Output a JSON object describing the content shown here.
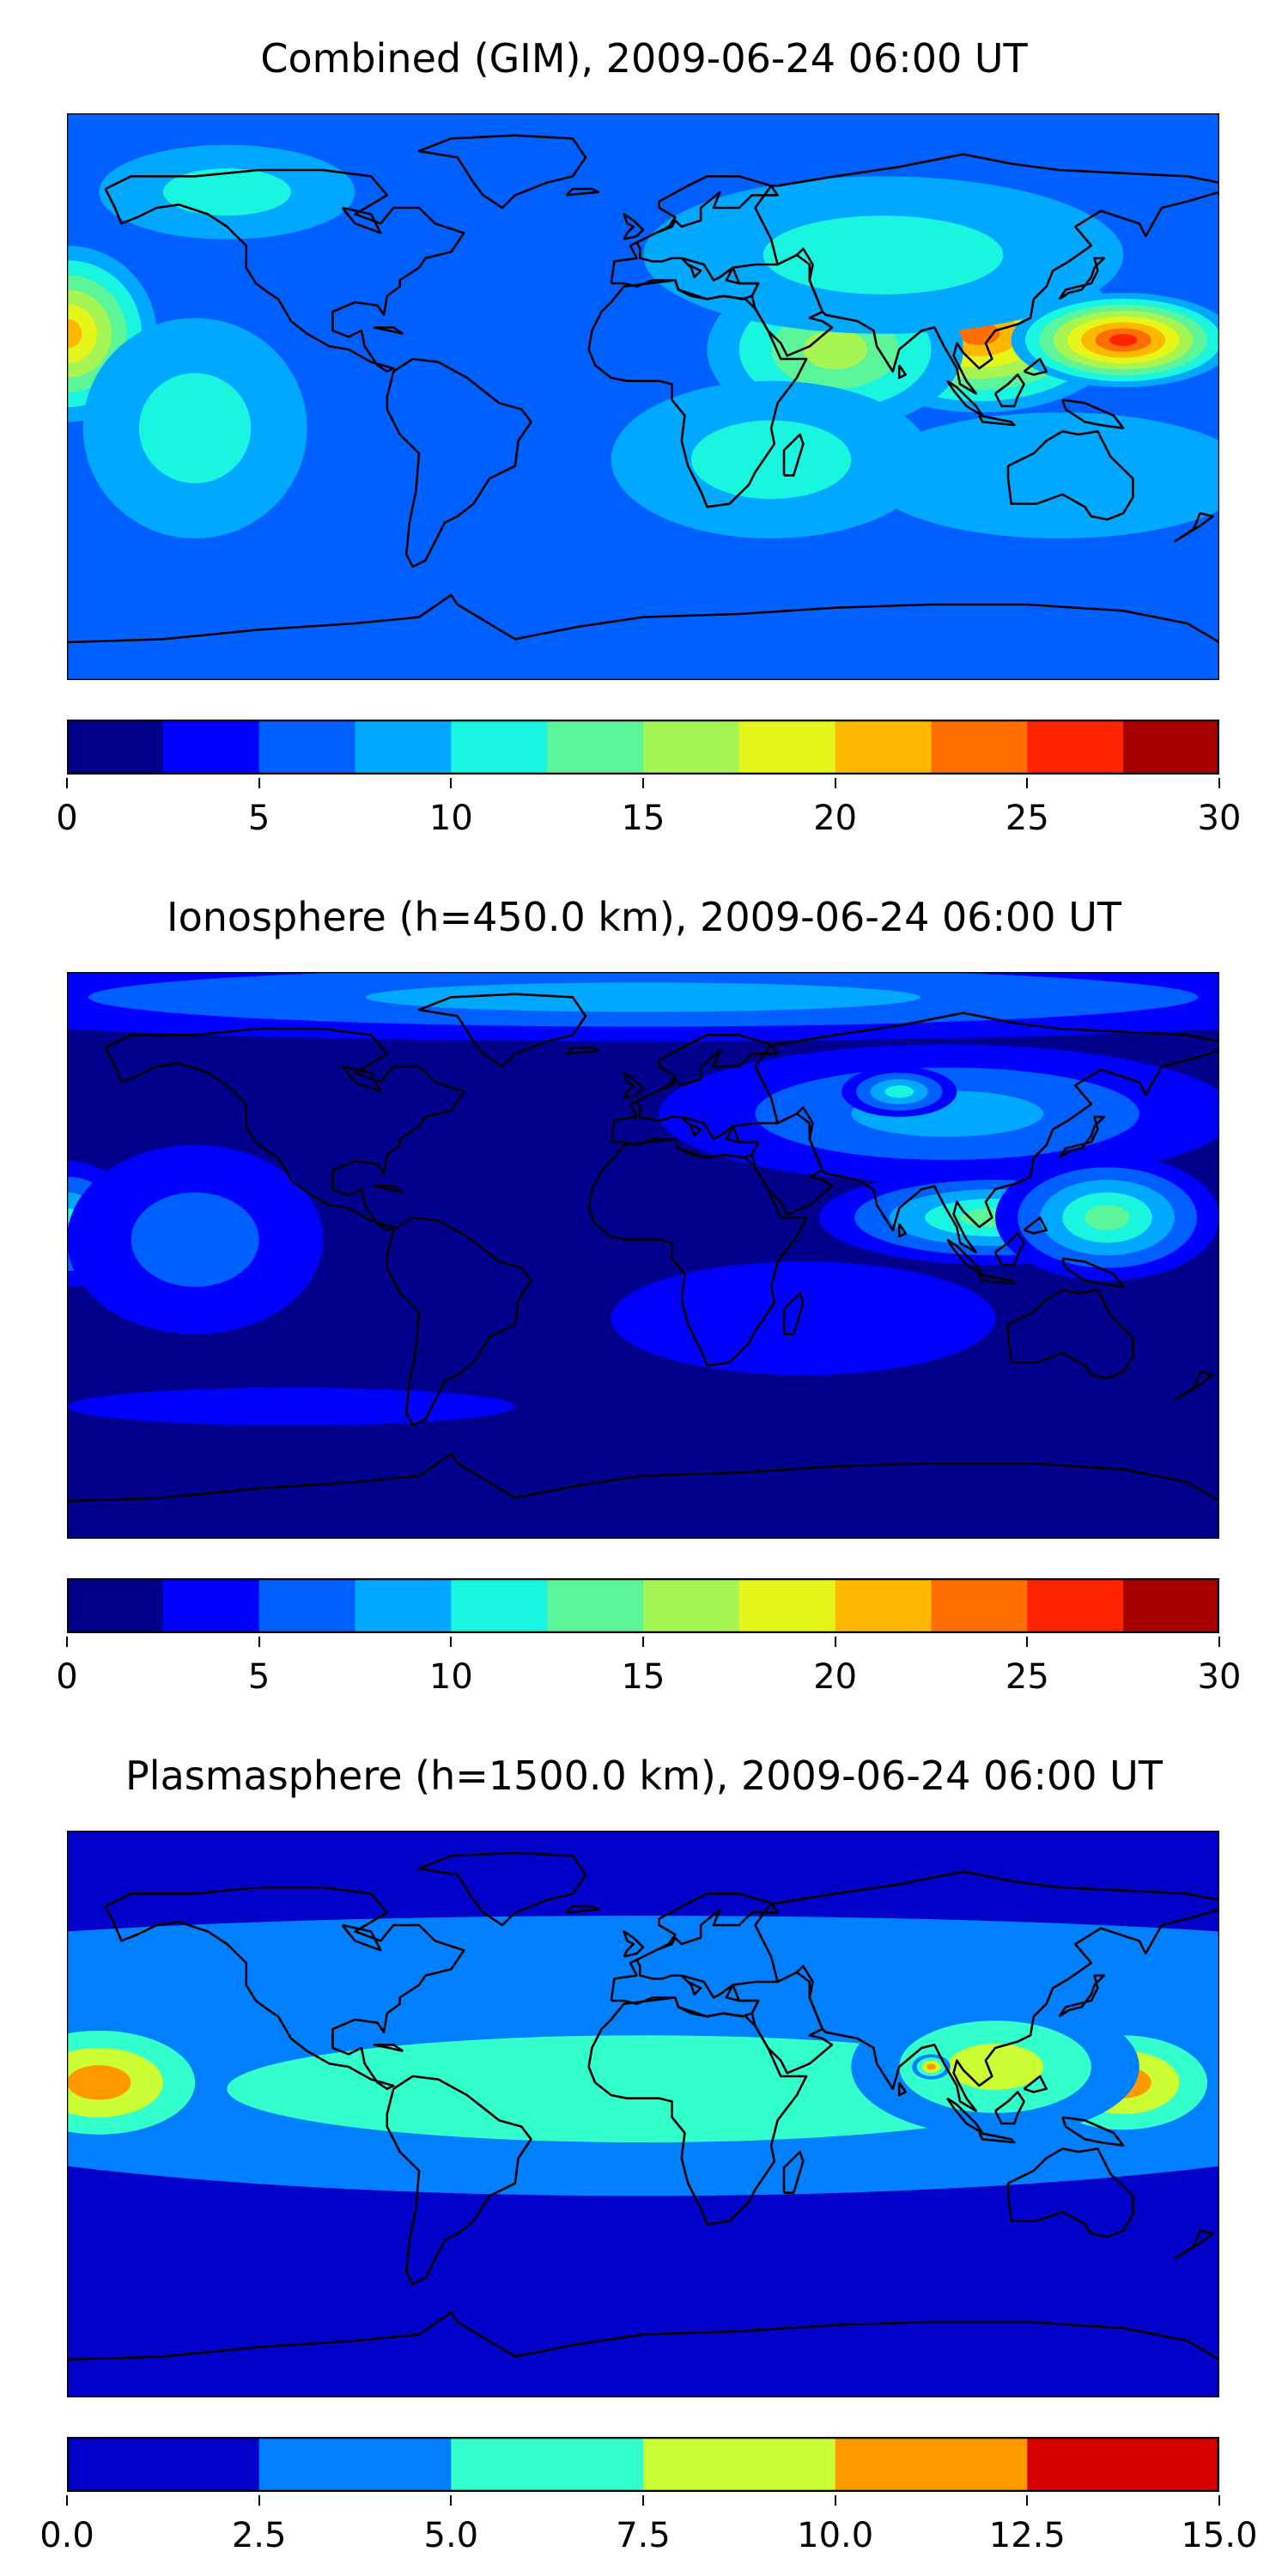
{
  "chart_data": [
    {
      "type": "heatmap",
      "title": "Combined (GIM), 2009-06-24 06:00 UT",
      "colorbar": {
        "levels": [
          0,
          2.5,
          5,
          7.5,
          10,
          12.5,
          15,
          17.5,
          20,
          22.5,
          25,
          27.5,
          30
        ],
        "colors": [
          "#00008c",
          "#0000ff",
          "#0060ff",
          "#00a8ff",
          "#1af5e0",
          "#5cf59a",
          "#a6f553",
          "#e6f51a",
          "#ffb800",
          "#ff6e00",
          "#ff2400",
          "#a80000"
        ],
        "tick_labels": [
          "0",
          "5",
          "10",
          "15",
          "20",
          "25",
          "30"
        ],
        "tick_values": [
          0,
          5,
          10,
          15,
          20,
          25,
          30
        ]
      },
      "background_level": 2,
      "features": [
        {
          "lon": 105,
          "lat": 20,
          "value": 23,
          "rlon": 45,
          "rlat": 25
        },
        {
          "lon": 150,
          "lat": 18,
          "value": 27,
          "rlon": 35,
          "rlat": 15
        },
        {
          "lon": 60,
          "lat": 15,
          "value": 17,
          "rlon": 40,
          "rlat": 25
        },
        {
          "lon": -180,
          "lat": 20,
          "value": 22,
          "rlon": 28,
          "rlat": 28
        },
        {
          "lon": 75,
          "lat": 45,
          "value": 12,
          "rlon": 75,
          "rlat": 25
        },
        {
          "lon": 40,
          "lat": -20,
          "value": 10,
          "rlon": 50,
          "rlat": 25
        },
        {
          "lon": -140,
          "lat": -10,
          "value": 10,
          "rlon": 35,
          "rlat": 35
        },
        {
          "lon": -130,
          "lat": 65,
          "value": 10,
          "rlon": 40,
          "rlat": 15
        },
        {
          "lon": 130,
          "lat": -25,
          "value": 9,
          "rlon": 60,
          "rlat": 20
        }
      ]
    },
    {
      "type": "heatmap",
      "title": "Ionosphere  (h=450.0 km), 2009-06-24 06:00 UT",
      "colorbar": {
        "levels": [
          0,
          2.5,
          5,
          7.5,
          10,
          12.5,
          15,
          17.5,
          20,
          22.5,
          25,
          27.5,
          30
        ],
        "colors": [
          "#00008c",
          "#0000ff",
          "#0060ff",
          "#00a8ff",
          "#1af5e0",
          "#5cf59a",
          "#a6f553",
          "#e6f51a",
          "#ffb800",
          "#ff6e00",
          "#ff2400",
          "#a80000"
        ],
        "tick_labels": [
          "0",
          "5",
          "10",
          "15",
          "20",
          "25",
          "30"
        ],
        "tick_values": [
          0,
          5,
          10,
          15,
          20,
          25,
          30
        ]
      },
      "background_level": 0,
      "features": [
        {
          "lon": 0,
          "lat": 82,
          "value": 9,
          "rlon": 260,
          "rlat": 14
        },
        {
          "lon": 95,
          "lat": 45,
          "value": 9,
          "rlon": 90,
          "rlat": 22
        },
        {
          "lon": 110,
          "lat": 12,
          "value": 14,
          "rlon": 55,
          "rlat": 15
        },
        {
          "lon": 145,
          "lat": 12,
          "value": 13,
          "rlon": 35,
          "rlat": 20
        },
        {
          "lon": 80,
          "lat": 52,
          "value": 11,
          "rlon": 18,
          "rlat": 8
        },
        {
          "lon": -180,
          "lat": 10,
          "value": 10,
          "rlon": 22,
          "rlat": 20
        },
        {
          "lon": 50,
          "lat": -20,
          "value": 4,
          "rlon": 60,
          "rlat": 18
        },
        {
          "lon": -140,
          "lat": 5,
          "value": 5,
          "rlon": 40,
          "rlat": 30
        },
        {
          "lon": -110,
          "lat": -48,
          "value": 3,
          "rlon": 70,
          "rlat": 6
        }
      ]
    },
    {
      "type": "heatmap",
      "title": "Plasmasphere (h=1500.0 km), 2009-06-24 06:00 UT",
      "colorbar": {
        "levels": [
          0,
          2.5,
          5,
          7.5,
          10,
          12.5,
          15
        ],
        "colors": [
          "#0000c8",
          "#0080ff",
          "#33ffcc",
          "#ccff33",
          "#ff9900",
          "#d80000"
        ],
        "tick_labels": [
          "0.0",
          "2.5",
          "5.0",
          "7.5",
          "10.0",
          "12.5",
          "15.0"
        ],
        "tick_values": [
          0,
          2.5,
          5,
          7.5,
          10,
          12.5,
          15
        ]
      },
      "background_level": 0,
      "features": [
        {
          "lon": 0,
          "lat": 8,
          "value": 6,
          "rlon": 260,
          "rlat": 34
        },
        {
          "lon": 0,
          "lat": 45,
          "value": 3,
          "rlon": 260,
          "rlat": 18
        },
        {
          "lon": -170,
          "lat": 10,
          "value": 11,
          "rlon": 40,
          "rlat": 22
        },
        {
          "lon": 150,
          "lat": 10,
          "value": 11,
          "rlon": 35,
          "rlat": 20
        },
        {
          "lon": 110,
          "lat": 15,
          "value": 8,
          "rlon": 45,
          "rlat": 22
        },
        {
          "lon": 0,
          "lat": 20,
          "value": 1.5,
          "rlon": 22,
          "rlat": 14
        },
        {
          "lon": 90,
          "lat": 15,
          "value": 11,
          "rlon": 6,
          "rlat": 4
        }
      ]
    }
  ]
}
